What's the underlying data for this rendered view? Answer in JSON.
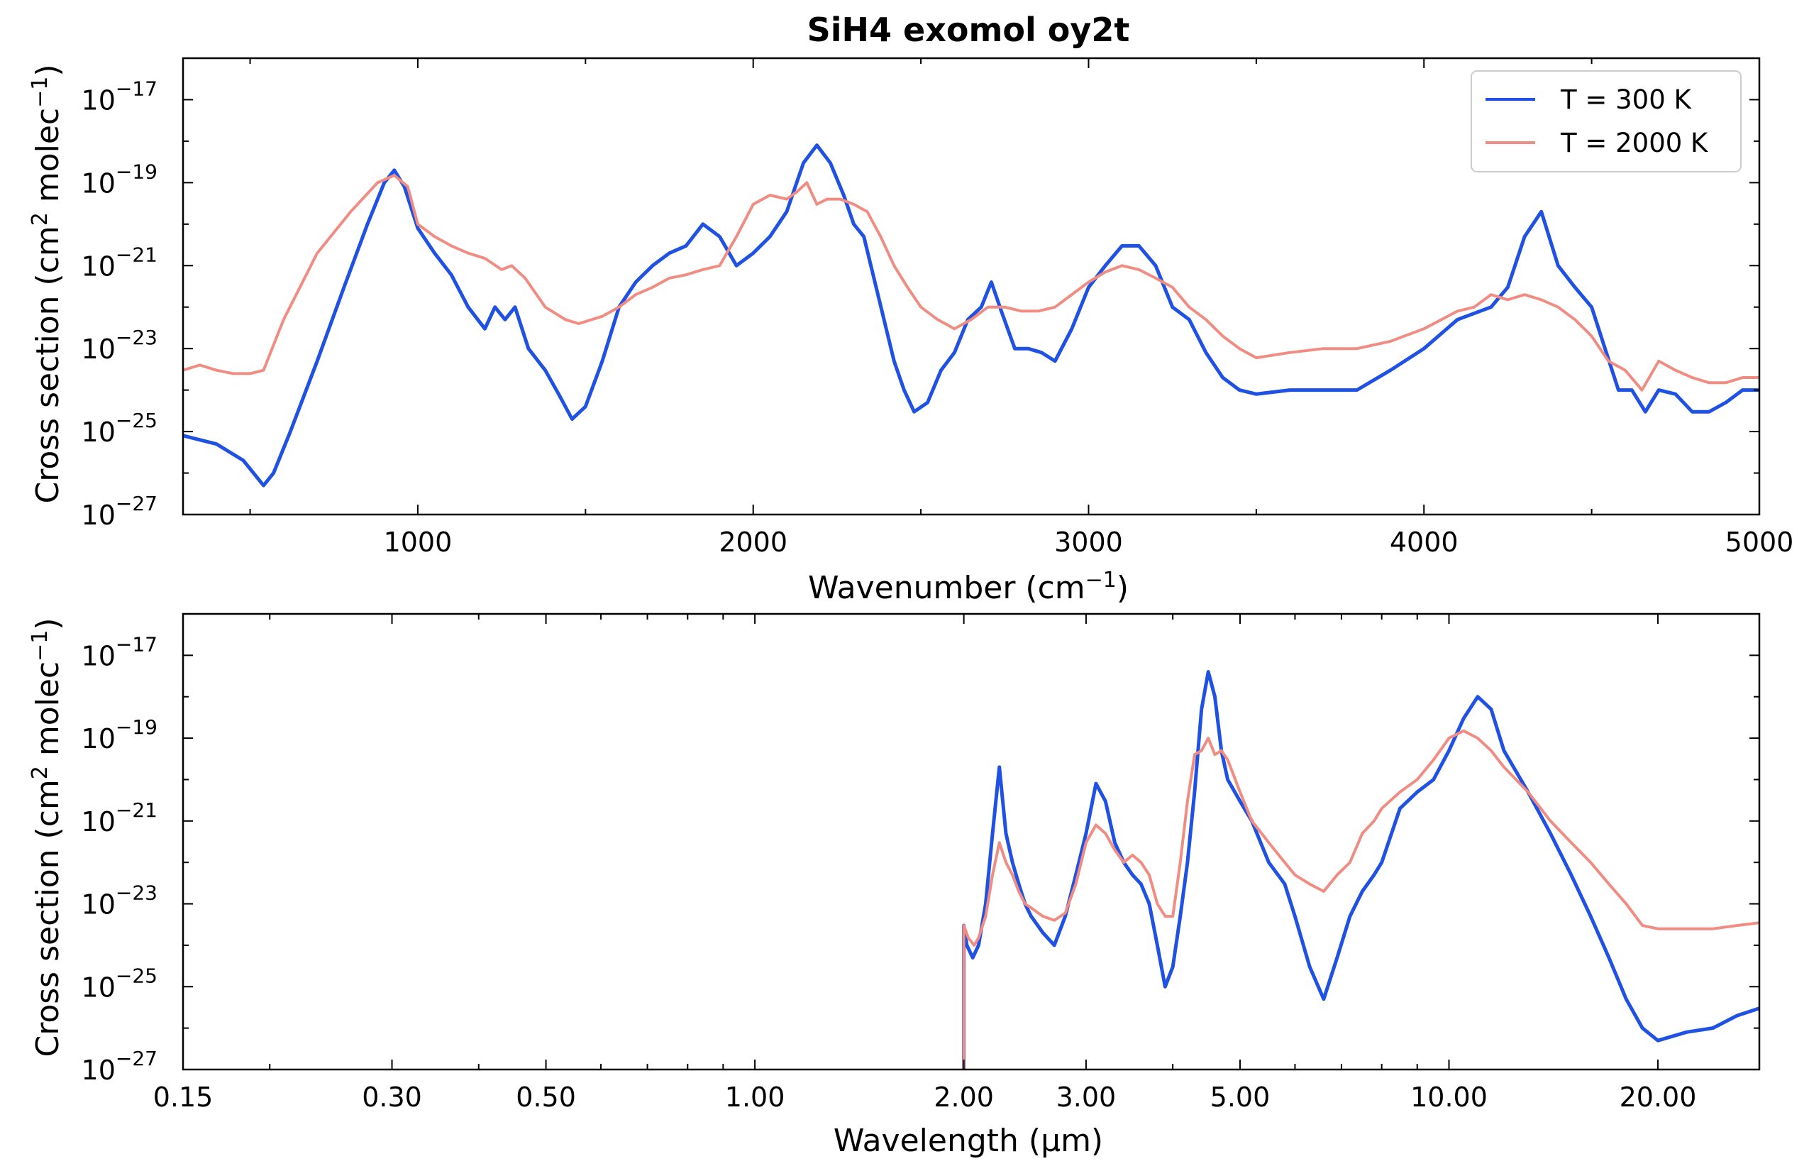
{
  "title": "SiH4 exomol oy2t",
  "colors": {
    "t300": "#1f52e4",
    "t2000": "#f08c82"
  },
  "legend": [
    {
      "label": "T = 300 K",
      "color": "#1f52e4"
    },
    {
      "label": "T = 2000 K",
      "color": "#f08c82"
    }
  ],
  "y_tick_labels": [
    {
      "base": "10",
      "exp": "−17",
      "value": 1e-17
    },
    {
      "base": "10",
      "exp": "−19",
      "value": 1e-19
    },
    {
      "base": "10",
      "exp": "−21",
      "value": 1e-21
    },
    {
      "base": "10",
      "exp": "−23",
      "value": 1e-23
    },
    {
      "base": "10",
      "exp": "−25",
      "value": 1e-25
    },
    {
      "base": "10",
      "exp": "−27",
      "value": 1e-27
    }
  ],
  "chart_data": [
    {
      "type": "line",
      "title": "SiH4 exomol oy2t",
      "xlabel": {
        "main": "Wavenumber (cm",
        "sup": "−1",
        "end": ")"
      },
      "ylabel": {
        "main": "Cross section (cm",
        "sup1": "2",
        "mid": " molec",
        "sup2": "−1",
        "end": ")"
      },
      "x_scale": "linear",
      "y_scale": "log",
      "xlim": [
        300,
        5000
      ],
      "ylim": [
        1e-27,
        1e-16
      ],
      "x_ticks": [
        1000,
        2000,
        3000,
        4000,
        5000
      ],
      "x_tick_labels": [
        "1000",
        "2000",
        "3000",
        "4000",
        "5000"
      ],
      "grid": false,
      "legend_position": "top-right",
      "series": [
        {
          "name": "T = 300 K",
          "x": [
            300,
            400,
            480,
            540,
            570,
            620,
            700,
            780,
            850,
            900,
            930,
            960,
            1000,
            1050,
            1100,
            1150,
            1200,
            1230,
            1260,
            1290,
            1330,
            1380,
            1420,
            1460,
            1500,
            1550,
            1600,
            1650,
            1700,
            1750,
            1800,
            1850,
            1900,
            1950,
            2000,
            2050,
            2100,
            2150,
            2190,
            2230,
            2270,
            2300,
            2330,
            2360,
            2390,
            2420,
            2450,
            2480,
            2520,
            2560,
            2600,
            2640,
            2680,
            2710,
            2740,
            2780,
            2820,
            2860,
            2900,
            2950,
            3000,
            3050,
            3100,
            3150,
            3200,
            3250,
            3300,
            3350,
            3400,
            3450,
            3500,
            3600,
            3700,
            3800,
            3900,
            4000,
            4100,
            4200,
            4250,
            4300,
            4350,
            4400,
            4450,
            4500,
            4540,
            4580,
            4620,
            4660,
            4700,
            4750,
            4800,
            4850,
            4900,
            4950,
            5000
          ],
          "y": [
            8e-26,
            5e-26,
            2e-26,
            5e-27,
            1e-26,
            1e-25,
            5e-24,
            3e-22,
            1e-20,
            1e-19,
            2e-19,
            8e-20,
            8e-21,
            2e-21,
            6e-22,
            1e-22,
            3e-23,
            1e-22,
            5e-23,
            1e-22,
            1e-23,
            3e-24,
            8e-25,
            2e-25,
            4e-25,
            5e-24,
            1e-22,
            4e-22,
            1e-21,
            2e-21,
            3e-21,
            1e-20,
            5e-21,
            1e-21,
            2e-21,
            5e-21,
            2e-20,
            3e-19,
            8e-19,
            3e-19,
            5e-20,
            1e-20,
            5e-21,
            5e-22,
            5e-23,
            5e-24,
            1e-24,
            3e-25,
            5e-25,
            3e-24,
            8e-24,
            5e-23,
            1e-22,
            4e-22,
            8e-23,
            1e-23,
            1e-23,
            8e-24,
            5e-24,
            3e-23,
            3e-22,
            1e-21,
            3e-21,
            3e-21,
            1e-21,
            1e-22,
            5e-23,
            8e-24,
            2e-24,
            1e-24,
            8e-25,
            1e-24,
            1e-24,
            1e-24,
            3e-24,
            1e-23,
            5e-23,
            1e-22,
            3e-22,
            5e-21,
            2e-20,
            1e-21,
            3e-22,
            1e-22,
            1e-23,
            1e-24,
            1e-24,
            3e-25,
            1e-24,
            8e-25,
            3e-25,
            3e-25,
            5e-25,
            1e-24,
            1e-24
          ]
        },
        {
          "name": "T = 2000 K",
          "x": [
            300,
            350,
            400,
            450,
            500,
            540,
            600,
            700,
            800,
            880,
            930,
            970,
            1000,
            1050,
            1100,
            1150,
            1200,
            1250,
            1280,
            1320,
            1380,
            1440,
            1480,
            1550,
            1600,
            1650,
            1700,
            1750,
            1800,
            1850,
            1900,
            1950,
            2000,
            2050,
            2100,
            2130,
            2160,
            2190,
            2220,
            2260,
            2300,
            2340,
            2380,
            2420,
            2460,
            2500,
            2550,
            2600,
            2650,
            2700,
            2750,
            2800,
            2850,
            2900,
            2950,
            3000,
            3050,
            3100,
            3150,
            3200,
            3250,
            3300,
            3350,
            3400,
            3450,
            3500,
            3600,
            3700,
            3800,
            3900,
            4000,
            4100,
            4150,
            4200,
            4250,
            4300,
            4350,
            4400,
            4450,
            4500,
            4550,
            4600,
            4650,
            4700,
            4750,
            4800,
            4850,
            4900,
            4950,
            5000
          ],
          "y": [
            3e-24,
            4e-24,
            3e-24,
            2.5e-24,
            2.5e-24,
            3e-24,
            5e-23,
            2e-21,
            2e-20,
            1e-19,
            1.5e-19,
            8e-20,
            1e-20,
            5e-21,
            3e-21,
            2e-21,
            1.5e-21,
            8e-22,
            1e-21,
            5e-22,
            1e-22,
            5e-23,
            4e-23,
            6e-23,
            1e-22,
            2e-22,
            3e-22,
            5e-22,
            6e-22,
            8e-22,
            1e-21,
            5e-21,
            3e-20,
            5e-20,
            4e-20,
            6e-20,
            1e-19,
            3e-20,
            4e-20,
            4e-20,
            3e-20,
            2e-20,
            5e-21,
            1e-21,
            3e-22,
            1e-22,
            5e-23,
            3e-23,
            5e-23,
            1e-22,
            1e-22,
            8e-23,
            8e-23,
            1e-22,
            2e-22,
            4e-22,
            7e-22,
            1e-21,
            8e-22,
            5e-22,
            3e-22,
            1e-22,
            5e-23,
            2e-23,
            1e-23,
            6e-24,
            8e-24,
            1e-23,
            1e-23,
            1.5e-23,
            3e-23,
            8e-23,
            1e-22,
            2e-22,
            1.5e-22,
            2e-22,
            1.5e-22,
            1e-22,
            5e-23,
            2e-23,
            5e-24,
            3e-24,
            1e-24,
            5e-24,
            3e-24,
            2e-24,
            1.5e-24,
            1.5e-24,
            2e-24,
            2e-24
          ]
        }
      ]
    },
    {
      "type": "line",
      "xlabel": "Wavelength (µm)",
      "ylabel": {
        "main": "Cross section (cm",
        "sup1": "2",
        "mid": " molec",
        "sup2": "−1",
        "end": ")"
      },
      "x_scale": "log",
      "y_scale": "log",
      "xlim": [
        0.15,
        28.0
      ],
      "ylim": [
        1e-27,
        1e-16
      ],
      "x_ticks": [
        0.15,
        0.3,
        0.5,
        1.0,
        2.0,
        3.0,
        5.0,
        10.0,
        20.0
      ],
      "x_tick_labels": [
        "0.15",
        "0.30",
        "0.50",
        "1.00",
        "2.00",
        "3.00",
        "5.00",
        "10.00",
        "20.00"
      ],
      "grid": false,
      "series": [
        {
          "name": "T = 300 K",
          "x": [
            2.0,
            2.0,
            2.02,
            2.06,
            2.1,
            2.15,
            2.2,
            2.25,
            2.3,
            2.35,
            2.4,
            2.45,
            2.5,
            2.6,
            2.7,
            2.8,
            2.9,
            3.0,
            3.1,
            3.2,
            3.3,
            3.4,
            3.5,
            3.6,
            3.7,
            3.8,
            3.9,
            4.0,
            4.1,
            4.2,
            4.3,
            4.4,
            4.5,
            4.6,
            4.7,
            4.8,
            5.0,
            5.2,
            5.5,
            5.8,
            6.0,
            6.3,
            6.6,
            6.9,
            7.2,
            7.5,
            7.8,
            8.0,
            8.5,
            9.0,
            9.5,
            10.0,
            10.5,
            11.0,
            11.5,
            12.0,
            13.0,
            14.0,
            15.0,
            16.0,
            17.0,
            18.0,
            19.0,
            20.0,
            22.0,
            24.0,
            26.0,
            28.0
          ],
          "y": [
            1e-27,
            3e-24,
            1e-24,
            5e-25,
            1e-24,
            1e-23,
            5e-22,
            2e-20,
            5e-22,
            1e-22,
            3e-23,
            1e-23,
            5e-24,
            2e-24,
            1e-24,
            5e-24,
            5e-23,
            5e-22,
            8e-21,
            3e-21,
            3e-22,
            1e-22,
            5e-23,
            3e-23,
            1e-23,
            1e-24,
            1e-25,
            3e-25,
            5e-24,
            1e-22,
            5e-21,
            5e-19,
            4e-18,
            1e-18,
            5e-20,
            1e-20,
            3e-21,
            1e-21,
            1e-22,
            3e-23,
            5e-24,
            3e-25,
            5e-26,
            5e-25,
            5e-24,
            2e-23,
            5e-23,
            1e-22,
            2e-21,
            5e-21,
            1e-20,
            5e-20,
            3e-19,
            1e-18,
            5e-19,
            5e-20,
            5e-21,
            5e-22,
            5e-23,
            5e-24,
            5e-25,
            5e-26,
            1e-26,
            5e-27,
            8e-27,
            1e-26,
            2e-26,
            3e-26
          ]
        },
        {
          "name": "T = 2000 K",
          "x": [
            2.0,
            2.0,
            2.03,
            2.07,
            2.1,
            2.15,
            2.2,
            2.25,
            2.3,
            2.35,
            2.4,
            2.45,
            2.5,
            2.6,
            2.7,
            2.8,
            2.9,
            3.0,
            3.1,
            3.2,
            3.3,
            3.4,
            3.5,
            3.6,
            3.7,
            3.8,
            3.9,
            4.0,
            4.1,
            4.2,
            4.3,
            4.4,
            4.5,
            4.6,
            4.7,
            4.8,
            5.0,
            5.2,
            5.5,
            5.8,
            6.0,
            6.3,
            6.6,
            6.9,
            7.2,
            7.5,
            7.8,
            8.0,
            8.5,
            9.0,
            9.5,
            10.0,
            10.5,
            11.0,
            11.5,
            12.0,
            13.0,
            14.0,
            15.0,
            16.0,
            17.0,
            18.0,
            19.0,
            20.0,
            22.0,
            24.0,
            26.0,
            28.0
          ],
          "y": [
            1e-27,
            3e-24,
            1.5e-24,
            1e-24,
            1.5e-24,
            5e-24,
            5e-23,
            3e-22,
            1e-22,
            5e-23,
            2e-23,
            1e-23,
            8e-24,
            5e-24,
            4e-24,
            6e-24,
            3e-23,
            3e-22,
            8e-22,
            5e-22,
            2e-22,
            1e-22,
            1.5e-22,
            1e-22,
            5e-23,
            1e-23,
            5e-24,
            5e-24,
            1e-22,
            3e-21,
            4e-20,
            5e-20,
            1e-19,
            4e-20,
            5e-20,
            3e-20,
            5e-21,
            1e-21,
            3e-22,
            1e-22,
            5e-23,
            3e-23,
            2e-23,
            5e-23,
            1e-22,
            5e-22,
            1e-21,
            2e-21,
            5e-21,
            1e-20,
            3e-20,
            1e-19,
            1.5e-19,
            1e-19,
            5e-20,
            2e-20,
            5e-21,
            1e-21,
            3e-22,
            1e-22,
            3e-23,
            1e-23,
            3e-24,
            2.5e-24,
            2.5e-24,
            2.5e-24,
            3e-24,
            3.5e-24
          ]
        }
      ]
    }
  ]
}
